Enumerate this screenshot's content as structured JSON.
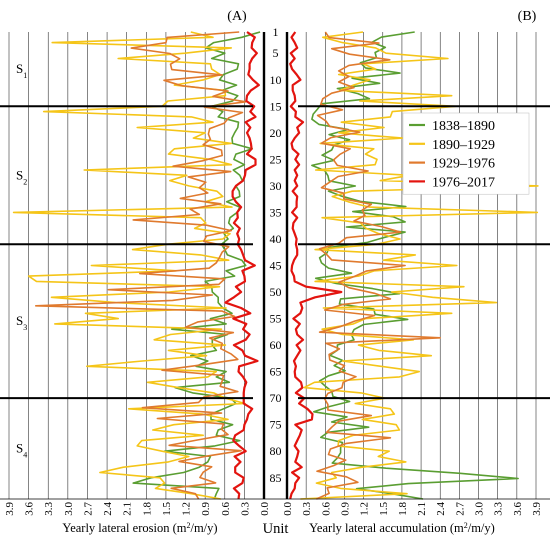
{
  "chart_data": {
    "type": "line",
    "panels": [
      {
        "id": "A",
        "label": "(A)",
        "xlabel": "Yearly lateral erosion (m²/m/y)",
        "x_direction": "reversed",
        "xlim": [
          0,
          3.9
        ],
        "xticks": [
          "0.0",
          "0.3",
          "0.6",
          "0.9",
          "1.2",
          "1.5",
          "1.8",
          "2.1",
          "2.4",
          "2.7",
          "3.0",
          "3.3",
          "3.6",
          "3.9"
        ]
      },
      {
        "id": "B",
        "label": "(B)",
        "xlabel": "Yearly lateral accumulation (m²/m/y)",
        "x_direction": "normal",
        "xlim": [
          0,
          3.9
        ],
        "xticks": [
          "0.0",
          "0.3",
          "0.6",
          "0.9",
          "1.2",
          "1.5",
          "1.8",
          "2.1",
          "2.4",
          "2.7",
          "3.0",
          "3.3",
          "3.6",
          "3.9"
        ]
      }
    ],
    "y_axis": {
      "label": "Unit",
      "range": [
        1,
        89
      ],
      "ticks": [
        "1",
        "5",
        "10",
        "15",
        "20",
        "25",
        "30",
        "35",
        "40",
        "45",
        "50",
        "55",
        "60",
        "65",
        "70",
        "75",
        "80",
        "85"
      ]
    },
    "segments": [
      {
        "label": "S",
        "subscript": "1",
        "units": [
          1,
          15
        ]
      },
      {
        "label": "S",
        "subscript": "2",
        "units": [
          15,
          41
        ]
      },
      {
        "label": "S",
        "subscript": "3",
        "units": [
          41,
          70
        ]
      },
      {
        "label": "S",
        "subscript": "4",
        "units": [
          70,
          89
        ]
      }
    ],
    "segment_boundaries": [
      15,
      41,
      70
    ],
    "legend_position": "right",
    "series": [
      {
        "name": "1838–1890",
        "color": "#5a9e32",
        "erosion": [
          0.06,
          0.34,
          0.77,
          0.89,
          0.6,
          0.8,
          0.39,
          0.41,
          0.62,
          0.68,
          0.42,
          0.64,
          0.4,
          0.48,
          0.8,
          0.63,
          0.7,
          0.39,
          0.4,
          0.45,
          0.49,
          0.48,
          0.18,
          0.43,
          0.46,
          0.3,
          0.47,
          0.37,
          0.33,
          0.43,
          0.38,
          0.37,
          0.57,
          0.37,
          0.41,
          0.52,
          0.54,
          0.47,
          0.61,
          0.55,
          0.65,
          0.6,
          0.56,
          0.34,
          0.28,
          0.58,
          0.45,
          0.9,
          0.8,
          0.79,
          0.7,
          0.7,
          0.63,
          0.49,
          0.82,
          0.58,
          1.41,
          0.56,
          0.79,
          0.79,
          0.73,
          1.12,
          0.86,
          1.04,
          0.58,
          0.73,
          0.53,
          1.36,
          1.09,
          0.51,
          0.43,
          0.62,
          0.81,
          0.81,
          0.48,
          0.7,
          0.73,
          0.37,
          0.75,
          1.52,
          0.82,
          0.86,
          0.99,
          1.23,
          1.73,
          2.0,
          0.69,
          0.73,
          0.76
        ],
        "accumulation": [
          2.0,
          1.48,
          1.33,
          1.54,
          1.38,
          1.4,
          1.15,
          1.23,
          1.77,
          1.02,
          1.45,
          0.79,
          1.11,
          1.29,
          0.54,
          0.48,
          0.41,
          0.39,
          0.5,
          0.96,
          0.66,
          0.98,
          0.74,
          0.7,
          0.55,
          0.74,
          0.39,
          0.59,
          0.64,
          0.66,
          1.07,
          0.65,
          0.86,
          1.15,
          1.86,
          1.03,
          1.66,
          1.85,
          0.93,
          1.85,
          1.53,
          1.26,
          0.65,
          0.63,
          0.51,
          0.54,
          0.65,
          1.01,
          0.45,
          0.77,
          1.34,
          1.76,
          0.84,
          0.82,
          1.36,
          1.38,
          1.89,
          1.2,
          1.05,
          1.01,
          1.05,
          0.79,
          0.79,
          0.67,
          0.87,
          0.74,
          0.91,
          0.65,
          0.51,
          0.6,
          0.7,
          0.72,
          0.98,
          0.66,
          0.42,
          0.94,
          0.7,
          1.28,
          0.64,
          0.53,
          0.87,
          0.84,
          0.84,
          0.79,
          0.71,
          1.55,
          2.71,
          3.62,
          1.9,
          1.09,
          1.66,
          2.13
        ]
      },
      {
        "name": "1890–1929",
        "color": "#f5c518",
        "erosion": [
          1.12,
          0.78,
          3.24,
          0.5,
          1.21,
          2.23,
          0.82,
          0.8,
          0.67,
          0.92,
          1.37,
          0.6,
          0.59,
          1.47,
          1.56,
          3.37,
          1.11,
          0.78,
          1.94,
          0.9,
          1.08,
          0.5,
          1.37,
          1.46,
          0.82,
          0.5,
          2.75,
          1.18,
          1.44,
          1.15,
          0.72,
          0.63,
          0.9,
          0.49,
          3.83,
          0.97,
          0.89,
          1.06,
          0.52,
          0.63,
          1.48,
          2.01,
          0.97,
          0.54,
          2.64,
          1.34,
          3.6,
          3.48,
          0.68,
          1.45,
          3.25,
          2.27,
          0.58,
          2.73,
          2.23,
          3.2,
          0.65,
          1.43,
          1.68,
          0.59,
          1.46,
          0.88,
          1.86,
          2.71,
          0.73,
          0.86,
          1.78,
          1.31,
          0.77,
          0.59,
          0.29,
          2.07,
          0.94,
          0.55,
          1.38,
          1.7,
          0.93,
          1.87,
          1.94,
          1.56,
          1.15,
          1.46,
          2.15,
          2.51,
          1.59,
          1.52,
          1.66,
          1.11,
          0.66
        ],
        "accumulation": [
          1.19,
          0.56,
          0.87,
          1.39,
          1.55,
          2.52,
          1.19,
          1.39,
          0.81,
          1.3,
          1.04,
          0.83,
          2.58,
          1.14,
          2.64,
          1.65,
          1.62,
          0.85,
          1.52,
          0.81,
          1.81,
          0.52,
          1.36,
          1.23,
          1.41,
          1.38,
          0.45,
          1.92,
          1.46,
          3.93,
          1.02,
          0.71,
          0.96,
          1.29,
          3.92,
          0.55,
          1.15,
          1.24,
          1.44,
          1.77,
          1.4,
          0.44,
          2.01,
          1.51,
          2.66,
          1.37,
          1.12,
          0.44,
          2.77,
          1.64,
          2.28,
          3.28,
          0.57,
          2.58,
          1.23,
          1.04,
          0.55,
          0.87,
          1.98,
          1.12,
          1.44,
          2.26,
          0.87,
          1.47,
          2.07,
          1.76,
          0.43,
          0.27,
          1.16,
          1.53,
          1.07,
          1.62,
          1.68,
          1.18,
          1.71,
          1.76,
          1.04,
          0.81,
          0.8,
          1.6,
          1.43,
          1.86,
          1.18,
          0.7,
          0.77,
          0.46,
          0.84,
          1.88,
          0.21
        ]
      },
      {
        "name": "1929–1976",
        "color": "#e07a2e",
        "erosion": [
          0.38,
          1.48,
          1.5,
          2.03,
          1.44,
          1.29,
          1.43,
          1.41,
          0.64,
          1.53,
          1.26,
          0.55,
          0.78,
          0.28,
          0.91,
          0.33,
          0.54,
          0.61,
          0.83,
          0.85,
          0.82,
          0.93,
          0.65,
          0.64,
          0.94,
          1.39,
          0.51,
          1.16,
          0.89,
          0.99,
          0.86,
          1.28,
          0.66,
          1.13,
          0.99,
          2.0,
          0.88,
          0.5,
          0.88,
          0.92,
          0.54,
          0.64,
          0.68,
          0.73,
          0.84,
          1.9,
          0.6,
          0.69,
          2.38,
          0.79,
          1.4,
          3.49,
          0.64,
          0.45,
          1.01,
          1.2,
          0.47,
          0.83,
          0.64,
          0.66,
          0.5,
          0.4,
          0.95,
          1.56,
          0.62,
          0.64,
          0.67,
          0.4,
          0.92,
          1.0,
          1.86,
          0.65,
          1.63,
          0.62,
          0.65,
          0.55,
          1.02,
          1.45,
          0.35,
          0.87,
          1.3,
          0.8,
          0.93,
          0.98,
          0.74,
          1.42,
          1.05,
          1.0
        ],
        "accumulation": [
          0.6,
          0.66,
          1.44,
          0.7,
          0.98,
          1.61,
          0.97,
          0.81,
          0.97,
          0.81,
          1.05,
          0.7,
          0.56,
          0.53,
          0.87,
          0.48,
          0.61,
          0.67,
          1.14,
          0.69,
          0.54,
          0.99,
          0.83,
          0.73,
          0.79,
          1.27,
          0.8,
          0.67,
          0.54,
          0.89,
          0.89,
          1.32,
          1.18,
          1.22,
          1.05,
          1.48,
          1.78,
          0.93,
          0.81,
          0.51,
          0.62,
          0.7,
          1.85,
          1.24,
          1.05,
          0.81,
          0.97,
          1.37,
          1.62,
          0.88,
          0.59,
          1.37,
          1.06,
          0.83,
          0.51,
          2.4,
          0.61,
          0.82,
          0.66,
          0.67,
          0.9,
          0.82,
          1.08,
          0.88,
          0.86,
          0.64,
          0.59,
          0.64,
          0.64,
          1.32,
          0.81,
          0.71,
          0.62,
          1.62,
          0.93,
          0.68,
          0.65,
          0.92,
          0.73,
          0.47,
          0.93,
          1.11,
          0.63,
          0.66,
          0.46
        ]
      },
      {
        "name": "1976–2017",
        "color": "#e3140f",
        "erosion": [
          0.26,
          0.14,
          0.18,
          0.19,
          0.11,
          0.18,
          0.22,
          0.22,
          0.24,
          0.17,
          0.08,
          0.2,
          0.26,
          0.27,
          0.15,
          0.21,
          0.13,
          0.28,
          0.21,
          0.26,
          0.22,
          0.2,
          0.19,
          0.26,
          0.13,
          0.13,
          0.28,
          0.29,
          0.32,
          0.43,
          0.48,
          0.48,
          0.43,
          0.35,
          0.41,
          0.4,
          0.46,
          0.37,
          0.41,
          0.38,
          0.4,
          0.35,
          0.32,
          0.29,
          0.14,
          0.33,
          0.3,
          0.29,
          0.43,
          0.35,
          0.46,
          0.59,
          0.35,
          0.21,
          0.47,
          0.27,
          0.32,
          0.22,
          0.28,
          0.46,
          0.33,
          0.29,
          0.1,
          0.38,
          0.39,
          0.32,
          0.27,
          0.3,
          0.31,
          0.31,
          0.31,
          0.18,
          0.24,
          0.26,
          0.3,
          0.31,
          0.44,
          0.47,
          0.38,
          0.28,
          0.45,
          0.36,
          0.44,
          0.44,
          0.31,
          0.33,
          0.46,
          0.38,
          0.39
        ],
        "accumulation": [
          0.13,
          0.07,
          0.12,
          0.16,
          0.06,
          0.12,
          0.05,
          0.08,
          0.15,
          0.21,
          0.09,
          0.09,
          0.12,
          0.13,
          0.06,
          0.14,
          0.13,
          0.25,
          0.16,
          0.19,
          0.12,
          0.07,
          0.09,
          0.18,
          0.13,
          0.19,
          0.12,
          0.16,
          0.12,
          0.16,
          0.09,
          0.16,
          0.15,
          0.15,
          0.08,
          0.16,
          0.1,
          0.09,
          0.12,
          0.15,
          0.14,
          0.16,
          0.16,
          0.11,
          0.08,
          0.07,
          0.11,
          0.12,
          0.3,
          0.85,
          0.44,
          0.21,
          0.24,
          0.21,
          0.1,
          0.2,
          0.14,
          0.16,
          0.25,
          0.15,
          0.21,
          0.16,
          0.11,
          0.14,
          0.12,
          0.13,
          0.22,
          0.24,
          0.14,
          0.27,
          0.19,
          0.32,
          0.4,
          0.39,
          0.13,
          0.23,
          0.2,
          0.16,
          0.12,
          0.18,
          0.16,
          0.13,
          0.23,
          0.08,
          0.19,
          0.13,
          0.12,
          0.07,
          0.05
        ]
      }
    ]
  }
}
